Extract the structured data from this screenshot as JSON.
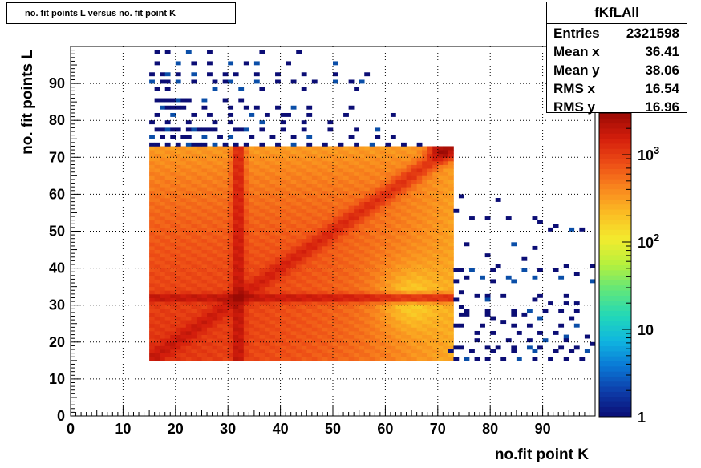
{
  "histogram": {
    "title": "no. fit points L versus no. fit point K",
    "stats": {
      "name": "fKfLAll",
      "rows": [
        {
          "label": "Entries",
          "value": "2321598"
        },
        {
          "label": "Mean x",
          "value": "36.41"
        },
        {
          "label": "Mean y",
          "value": "38.06"
        },
        {
          "label": "RMS x",
          "value": "16.54"
        },
        {
          "label": "RMS y",
          "value": "16.96"
        }
      ]
    }
  },
  "chart_data": {
    "type": "heatmap",
    "title": "no. fit points L versus no. fit point K",
    "xlabel": "no.fit point K",
    "ylabel": "no. fit points  L",
    "xlim": [
      0,
      100
    ],
    "ylim": [
      0,
      100
    ],
    "x_ticks": [
      0,
      10,
      20,
      30,
      40,
      50,
      60,
      70,
      80,
      90
    ],
    "y_ticks": [
      0,
      10,
      20,
      30,
      40,
      50,
      60,
      70,
      80,
      90
    ],
    "grid": true,
    "bin_width": 1,
    "colorbar": {
      "scale": "log",
      "min": 1,
      "max": 3000,
      "tick_labels": [
        "1",
        "10",
        "10^2",
        "10^3"
      ],
      "tick_values": [
        1,
        10,
        100,
        1000
      ]
    },
    "colormap": [
      "#0b0d75",
      "#0d3ca8",
      "#0a78d6",
      "#0fb5e0",
      "#22d8b8",
      "#5fe67c",
      "#b4f03e",
      "#f2ec2e",
      "#fbbf24",
      "#f9891e",
      "#ee4e16",
      "#d41e0c",
      "#9b0a04"
    ],
    "dense_region": {
      "x_range": [
        15,
        73
      ],
      "y_range": [
        15,
        73
      ]
    },
    "density_features": [
      {
        "feature": "maximum",
        "x": 71,
        "y": 72,
        "count_approx": 2500
      },
      {
        "feature": "high band",
        "x": 32,
        "y_range": [
          15,
          73
        ],
        "count_approx": 1500
      },
      {
        "feature": "high band",
        "y": 32,
        "x_range": [
          15,
          73
        ],
        "count_approx": 1500
      },
      {
        "feature": "high diagonal",
        "from": [
          15,
          15
        ],
        "to": [
          73,
          73
        ],
        "count_approx": 1000
      },
      {
        "feature": "low region",
        "x_range": [
          57,
          71
        ],
        "y_range": [
          18,
          45
        ],
        "count_approx": 150
      }
    ],
    "sparse_bins": [
      [
        16,
        98
      ],
      [
        18,
        98
      ],
      [
        22,
        98
      ],
      [
        26,
        98
      ],
      [
        36,
        98
      ],
      [
        43,
        98
      ],
      [
        16,
        95
      ],
      [
        20,
        95
      ],
      [
        23,
        95
      ],
      [
        26,
        95
      ],
      [
        30,
        95
      ],
      [
        33,
        95
      ],
      [
        35,
        95
      ],
      [
        41,
        95
      ],
      [
        50,
        95
      ],
      [
        15,
        92
      ],
      [
        17,
        92
      ],
      [
        18,
        92
      ],
      [
        20,
        92
      ],
      [
        23,
        92
      ],
      [
        26,
        92
      ],
      [
        29,
        92
      ],
      [
        31,
        92
      ],
      [
        35,
        92
      ],
      [
        39,
        92
      ],
      [
        44,
        92
      ],
      [
        50,
        92
      ],
      [
        56,
        92
      ],
      [
        15,
        90
      ],
      [
        17,
        90
      ],
      [
        18,
        90
      ],
      [
        20,
        90
      ],
      [
        23,
        90
      ],
      [
        27,
        90
      ],
      [
        29,
        90
      ],
      [
        30,
        90
      ],
      [
        35,
        90
      ],
      [
        39,
        90
      ],
      [
        42,
        90
      ],
      [
        46,
        90
      ],
      [
        50,
        90
      ],
      [
        53,
        90
      ],
      [
        55,
        90
      ],
      [
        16,
        88
      ],
      [
        18,
        88
      ],
      [
        27,
        88
      ],
      [
        32,
        88
      ],
      [
        36,
        88
      ],
      [
        44,
        88
      ],
      [
        54,
        88
      ],
      [
        16,
        85
      ],
      [
        17,
        85
      ],
      [
        18,
        85
      ],
      [
        19,
        85
      ],
      [
        20,
        85
      ],
      [
        21,
        85
      ],
      [
        22,
        85
      ],
      [
        25,
        85
      ],
      [
        29,
        85
      ],
      [
        32,
        85
      ],
      [
        17,
        83
      ],
      [
        18,
        83
      ],
      [
        19,
        83
      ],
      [
        20,
        83
      ],
      [
        21,
        83
      ],
      [
        25,
        83
      ],
      [
        30,
        83
      ],
      [
        33,
        83
      ],
      [
        35,
        83
      ],
      [
        39,
        83
      ],
      [
        42,
        83
      ],
      [
        45,
        83
      ],
      [
        53,
        83
      ],
      [
        16,
        81
      ],
      [
        19,
        81
      ],
      [
        23,
        81
      ],
      [
        26,
        81
      ],
      [
        30,
        81
      ],
      [
        34,
        81
      ],
      [
        37,
        81
      ],
      [
        40,
        81
      ],
      [
        41,
        81
      ],
      [
        45,
        81
      ],
      [
        52,
        81
      ],
      [
        61,
        81
      ],
      [
        15,
        79
      ],
      [
        18,
        79
      ],
      [
        22,
        79
      ],
      [
        27,
        79
      ],
      [
        30,
        79
      ],
      [
        36,
        79
      ],
      [
        40,
        79
      ],
      [
        44,
        79
      ],
      [
        49,
        79
      ],
      [
        16,
        77
      ],
      [
        17,
        77
      ],
      [
        18,
        77
      ],
      [
        19,
        77
      ],
      [
        20,
        77
      ],
      [
        22,
        77
      ],
      [
        23,
        77
      ],
      [
        24,
        77
      ],
      [
        25,
        77
      ],
      [
        26,
        77
      ],
      [
        27,
        77
      ],
      [
        31,
        77
      ],
      [
        32,
        77
      ],
      [
        33,
        77
      ],
      [
        36,
        77
      ],
      [
        40,
        77
      ],
      [
        44,
        77
      ],
      [
        49,
        77
      ],
      [
        54,
        77
      ],
      [
        58,
        77
      ],
      [
        15,
        75
      ],
      [
        17,
        75
      ],
      [
        19,
        75
      ],
      [
        21,
        75
      ],
      [
        22,
        75
      ],
      [
        25,
        75
      ],
      [
        28,
        75
      ],
      [
        30,
        75
      ],
      [
        34,
        75
      ],
      [
        38,
        75
      ],
      [
        42,
        75
      ],
      [
        45,
        75
      ],
      [
        53,
        75
      ],
      [
        58,
        75
      ],
      [
        61,
        75
      ],
      [
        15,
        73
      ],
      [
        16,
        73
      ],
      [
        18,
        73
      ],
      [
        20,
        73
      ],
      [
        22,
        73
      ],
      [
        23,
        73
      ],
      [
        24,
        73
      ],
      [
        25,
        73
      ],
      [
        27,
        73
      ],
      [
        29,
        73
      ],
      [
        31,
        73
      ],
      [
        33,
        73
      ],
      [
        36,
        73
      ],
      [
        39,
        73
      ],
      [
        42,
        73
      ],
      [
        45,
        73
      ],
      [
        48,
        73
      ],
      [
        51,
        73
      ],
      [
        54,
        73
      ],
      [
        57,
        73
      ],
      [
        60,
        73
      ],
      [
        63,
        73
      ],
      [
        66,
        73
      ],
      [
        74,
        59
      ],
      [
        81,
        58
      ],
      [
        73,
        55
      ],
      [
        76,
        53
      ],
      [
        79,
        53
      ],
      [
        83,
        53
      ],
      [
        88,
        53
      ],
      [
        89,
        52
      ],
      [
        92,
        51
      ],
      [
        91,
        50
      ],
      [
        95,
        50
      ],
      [
        97,
        50
      ],
      [
        75,
        46
      ],
      [
        84,
        46
      ],
      [
        88,
        45
      ],
      [
        79,
        43
      ],
      [
        86,
        42
      ],
      [
        81,
        40
      ],
      [
        94,
        40
      ],
      [
        99,
        40
      ],
      [
        73,
        39
      ],
      [
        74,
        39
      ],
      [
        76,
        39
      ],
      [
        80,
        39
      ],
      [
        86,
        39
      ],
      [
        89,
        39
      ],
      [
        92,
        39
      ],
      [
        96,
        38
      ],
      [
        75,
        37
      ],
      [
        78,
        37
      ],
      [
        83,
        37
      ],
      [
        88,
        37
      ],
      [
        93,
        37
      ],
      [
        99,
        36
      ],
      [
        73,
        36
      ],
      [
        80,
        36
      ],
      [
        84,
        36
      ],
      [
        74,
        33
      ],
      [
        77,
        32
      ],
      [
        79,
        32
      ],
      [
        82,
        32
      ],
      [
        89,
        32
      ],
      [
        94,
        32
      ],
      [
        73,
        31
      ],
      [
        79,
        31
      ],
      [
        88,
        31
      ],
      [
        91,
        30
      ],
      [
        94,
        30
      ],
      [
        96,
        30
      ],
      [
        74,
        29
      ],
      [
        75,
        28
      ],
      [
        79,
        28
      ],
      [
        84,
        28
      ],
      [
        87,
        28
      ],
      [
        90,
        28
      ],
      [
        93,
        28
      ],
      [
        96,
        28
      ],
      [
        74,
        27
      ],
      [
        75,
        27
      ],
      [
        79,
        27
      ],
      [
        84,
        27
      ],
      [
        86,
        27
      ],
      [
        89,
        26
      ],
      [
        95,
        26
      ],
      [
        80,
        26
      ],
      [
        82,
        25
      ],
      [
        73,
        24
      ],
      [
        74,
        24
      ],
      [
        78,
        24
      ],
      [
        84,
        24
      ],
      [
        87,
        24
      ],
      [
        93,
        24
      ],
      [
        96,
        24
      ],
      [
        77,
        22
      ],
      [
        80,
        22
      ],
      [
        85,
        22
      ],
      [
        89,
        22
      ],
      [
        92,
        22
      ],
      [
        94,
        21
      ],
      [
        98,
        21
      ],
      [
        77,
        20
      ],
      [
        83,
        20
      ],
      [
        87,
        20
      ],
      [
        90,
        20
      ],
      [
        94,
        20
      ],
      [
        99,
        19
      ],
      [
        73,
        18
      ],
      [
        74,
        18
      ],
      [
        79,
        18
      ],
      [
        81,
        18
      ],
      [
        84,
        18
      ],
      [
        87,
        18
      ],
      [
        89,
        18
      ],
      [
        93,
        18
      ],
      [
        96,
        18
      ],
      [
        72,
        17
      ],
      [
        76,
        17
      ],
      [
        80,
        17
      ],
      [
        84,
        17
      ],
      [
        88,
        17
      ],
      [
        92,
        17
      ],
      [
        95,
        17
      ],
      [
        98,
        17
      ],
      [
        73,
        15
      ],
      [
        75,
        15
      ],
      [
        77,
        15
      ],
      [
        79,
        15
      ],
      [
        82,
        15
      ],
      [
        85,
        15
      ],
      [
        88,
        15
      ],
      [
        91,
        15
      ],
      [
        94,
        15
      ],
      [
        97,
        15
      ]
    ]
  }
}
